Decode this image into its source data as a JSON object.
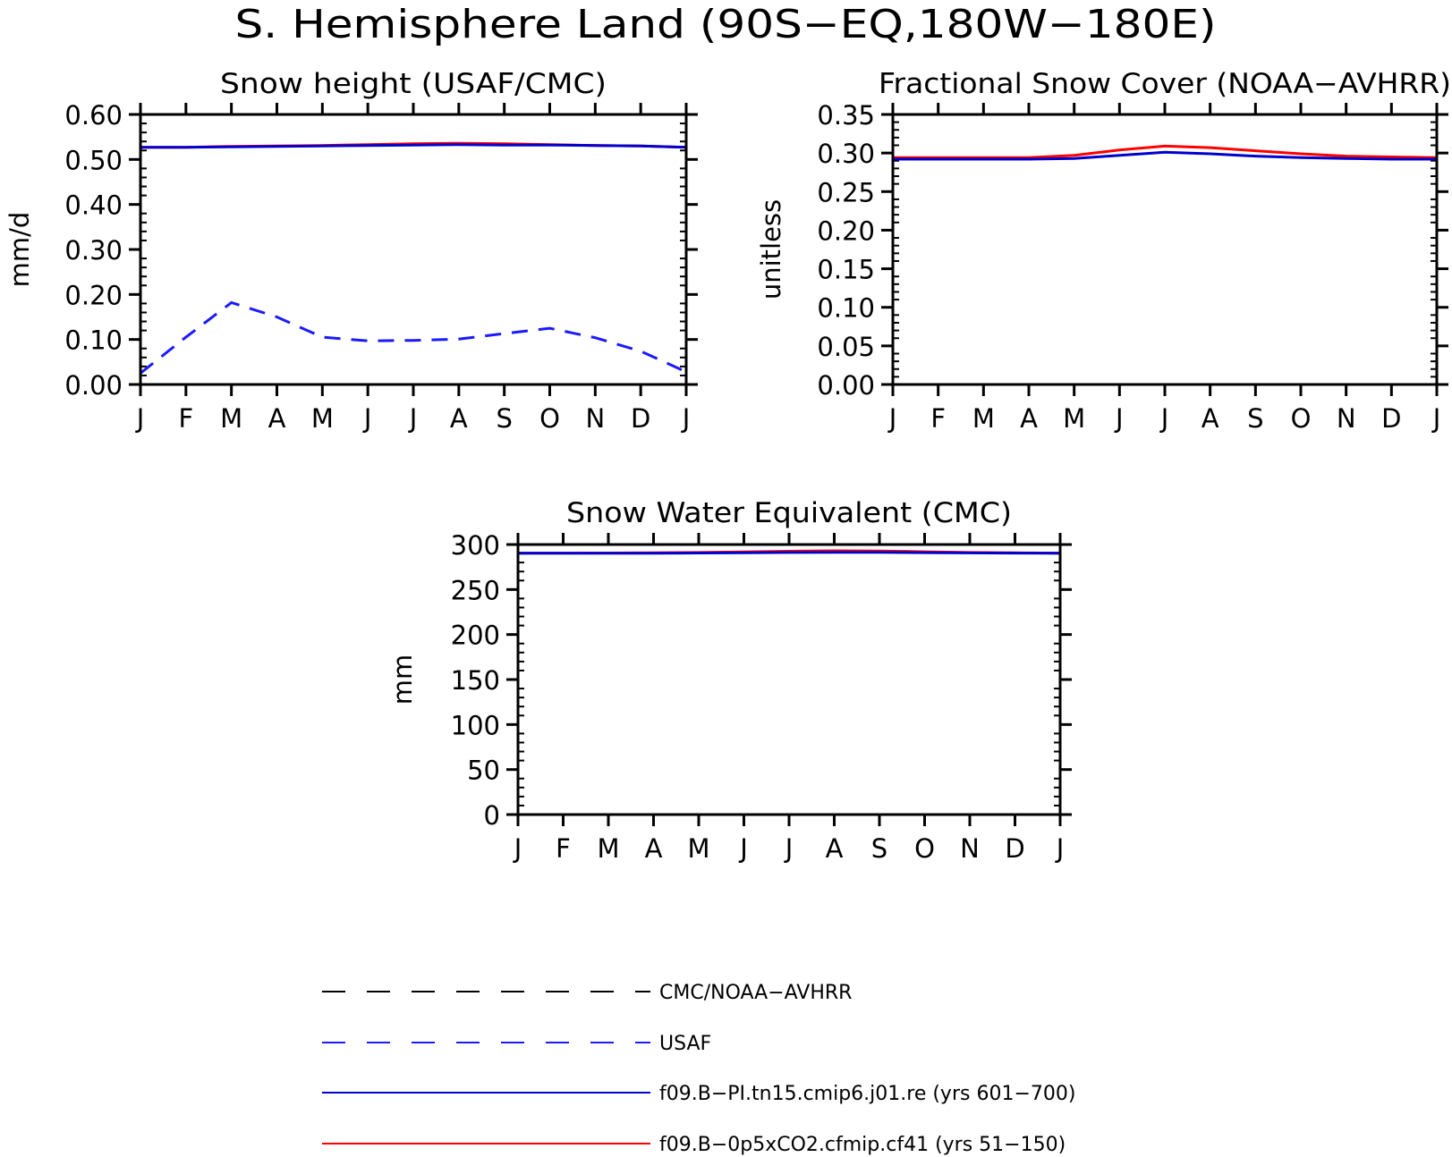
{
  "figure": {
    "title": "S. Hemisphere Land (90S−EQ,180W−180E)"
  },
  "legend": {
    "entries": [
      {
        "label": "CMC/NOAA−AVHRR",
        "color": "#000000",
        "dash": true
      },
      {
        "label": "USAF",
        "color": "#1a1aff",
        "dash": true
      },
      {
        "label": "f09.B−PI.tn15.cmip6.j01.re (yrs 601−700)",
        "color": "#0000cc",
        "dash": false
      },
      {
        "label": "f09.B−0p5xCO2.cfmip.cf41 (yrs 51−150)",
        "color": "#ff0000",
        "dash": false
      }
    ]
  },
  "chart_data": [
    {
      "type": "line",
      "title": "Snow height (USAF/CMC)",
      "xlabel": "",
      "ylabel": "mm/d",
      "categories": [
        "J",
        "F",
        "M",
        "A",
        "M",
        "J",
        "J",
        "A",
        "S",
        "O",
        "N",
        "D",
        "J"
      ],
      "ylim": [
        0,
        0.6
      ],
      "yticks": [
        0,
        0.1,
        0.2,
        0.3,
        0.4,
        0.5,
        0.6
      ],
      "ytick_labels": [
        "0.00",
        "0.10",
        "0.20",
        "0.30",
        "0.40",
        "0.50",
        "0.60"
      ],
      "series": [
        {
          "name": "f09.B−0p5xCO2.cfmip.cf41 (yrs 51−150)",
          "color": "#ff0000",
          "dash": false,
          "values": [
            0.527,
            0.527,
            0.529,
            0.53,
            0.531,
            0.533,
            0.535,
            0.536,
            0.535,
            0.533,
            0.531,
            0.53,
            0.527
          ]
        },
        {
          "name": "f09.B−PI.tn15.cmip6.j01.re (yrs 601−700)",
          "color": "#0000cc",
          "dash": false,
          "values": [
            0.527,
            0.527,
            0.528,
            0.529,
            0.53,
            0.531,
            0.532,
            0.533,
            0.532,
            0.532,
            0.531,
            0.53,
            0.527
          ]
        },
        {
          "name": "USAF",
          "color": "#1a1aff",
          "dash": true,
          "values": [
            0.025,
            0.105,
            0.182,
            0.15,
            0.105,
            0.097,
            0.098,
            0.101,
            0.113,
            0.125,
            0.104,
            0.074,
            0.028
          ]
        }
      ]
    },
    {
      "type": "line",
      "title": "Fractional Snow Cover (NOAA−AVHRR)",
      "xlabel": "",
      "ylabel": "unitless",
      "categories": [
        "J",
        "F",
        "M",
        "A",
        "M",
        "J",
        "J",
        "A",
        "S",
        "O",
        "N",
        "D",
        "J"
      ],
      "ylim": [
        0,
        0.35
      ],
      "yticks": [
        0,
        0.05,
        0.1,
        0.15,
        0.2,
        0.25,
        0.3,
        0.35
      ],
      "ytick_labels": [
        "0.00",
        "0.05",
        "0.10",
        "0.15",
        "0.20",
        "0.25",
        "0.30",
        "0.35"
      ],
      "series": [
        {
          "name": "f09.B−0p5xCO2.cfmip.cf41 (yrs 51−150)",
          "color": "#ff0000",
          "dash": false,
          "values": [
            0.294,
            0.294,
            0.294,
            0.294,
            0.297,
            0.304,
            0.309,
            0.307,
            0.303,
            0.299,
            0.296,
            0.295,
            0.294
          ]
        },
        {
          "name": "f09.B−PI.tn15.cmip6.j01.re (yrs 601−700)",
          "color": "#0000cc",
          "dash": false,
          "values": [
            0.292,
            0.292,
            0.292,
            0.292,
            0.293,
            0.297,
            0.301,
            0.299,
            0.296,
            0.294,
            0.293,
            0.292,
            0.292
          ]
        }
      ]
    },
    {
      "type": "line",
      "title": "Snow Water Equivalent (CMC)",
      "xlabel": "",
      "ylabel": "mm",
      "categories": [
        "J",
        "F",
        "M",
        "A",
        "M",
        "J",
        "J",
        "A",
        "S",
        "O",
        "N",
        "D",
        "J"
      ],
      "ylim": [
        0,
        300
      ],
      "yticks": [
        0,
        50,
        100,
        150,
        200,
        250,
        300
      ],
      "ytick_labels": [
        "0",
        "50",
        "100",
        "150",
        "200",
        "250",
        "300"
      ],
      "series": [
        {
          "name": "f09.B−0p5xCO2.cfmip.cf41 (yrs 51−150)",
          "color": "#ff0000",
          "dash": false,
          "values": [
            290.5,
            290.5,
            290.6,
            290.8,
            291.2,
            291.8,
            292.5,
            293.0,
            292.8,
            292.0,
            291.2,
            290.8,
            290.5
          ]
        },
        {
          "name": "f09.B−PI.tn15.cmip6.j01.re (yrs 601−700)",
          "color": "#0000cc",
          "dash": false,
          "values": [
            290.3,
            290.3,
            290.3,
            290.4,
            290.6,
            290.9,
            291.2,
            291.4,
            291.3,
            291.0,
            290.7,
            290.5,
            290.3
          ]
        }
      ]
    }
  ]
}
